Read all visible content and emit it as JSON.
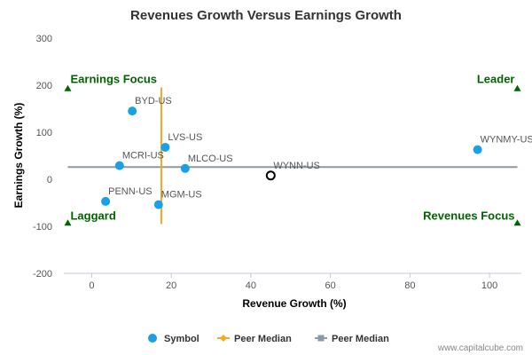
{
  "chart_data": {
    "type": "scatter",
    "title": "Revenues Growth Versus Earnings Growth",
    "xlabel": "Revenue Growth (%)",
    "ylabel": "Earnings Growth (%)",
    "xlim": [
      -7,
      108
    ],
    "ylim": [
      -200,
      300
    ],
    "x_ticks": [
      0,
      20,
      40,
      60,
      80,
      100
    ],
    "y_ticks": [
      -200,
      -100,
      0,
      100,
      200,
      300
    ],
    "x_tick_labels": [
      "0",
      "20",
      "40",
      "60",
      "80",
      "100"
    ],
    "y_tick_labels": [
      "-200",
      "-100",
      "0",
      "100",
      "200",
      "300"
    ],
    "grid": false,
    "points": [
      {
        "label": "BYD-US",
        "x": 10.2,
        "y": 145,
        "highlight": false
      },
      {
        "label": "LVS-US",
        "x": 18.5,
        "y": 68,
        "highlight": false
      },
      {
        "label": "MCRI-US",
        "x": 7.0,
        "y": 29,
        "highlight": false
      },
      {
        "label": "MLCO-US",
        "x": 23.5,
        "y": 23,
        "highlight": false
      },
      {
        "label": "WYNMY-US",
        "x": 97.0,
        "y": 63,
        "highlight": false
      },
      {
        "label": "WYNN-US",
        "x": 45.0,
        "y": 8,
        "highlight": true
      },
      {
        "label": "PENN-US",
        "x": 3.5,
        "y": -47,
        "highlight": false
      },
      {
        "label": "MGM-US",
        "x": 16.8,
        "y": -54,
        "highlight": false
      }
    ],
    "peer_median_revenue_growth": 17.5,
    "peer_median_earnings_growth": 26,
    "vertical_median_range": [
      -95,
      195
    ],
    "quadrants": [
      {
        "label": "Earnings Focus",
        "x": -6,
        "y": 193
      },
      {
        "label": "Leader",
        "x": 107,
        "y": 193
      },
      {
        "label": "Laggard",
        "x": -6,
        "y": -93
      },
      {
        "label": "Revenues Focus",
        "x": 107,
        "y": -93
      }
    ],
    "legend": {
      "position": "bottom-center",
      "items": [
        {
          "label": "Symbol",
          "marker": "circle",
          "color": "#1aa0e8"
        },
        {
          "label": "Peer Median",
          "marker": "line-diamond",
          "color": "#f5a623"
        },
        {
          "label": "Peer Median",
          "marker": "line-square",
          "color": "#8c99a6"
        }
      ]
    },
    "colors": {
      "point": "#1aa0e8",
      "highlight_stroke": "#000000",
      "vertical_median": "#f5a623",
      "horizontal_median": "#8c99a6",
      "quadrant": "#006400",
      "axis": "#c0c8d8"
    }
  },
  "credit": "www.capitalcube.com"
}
